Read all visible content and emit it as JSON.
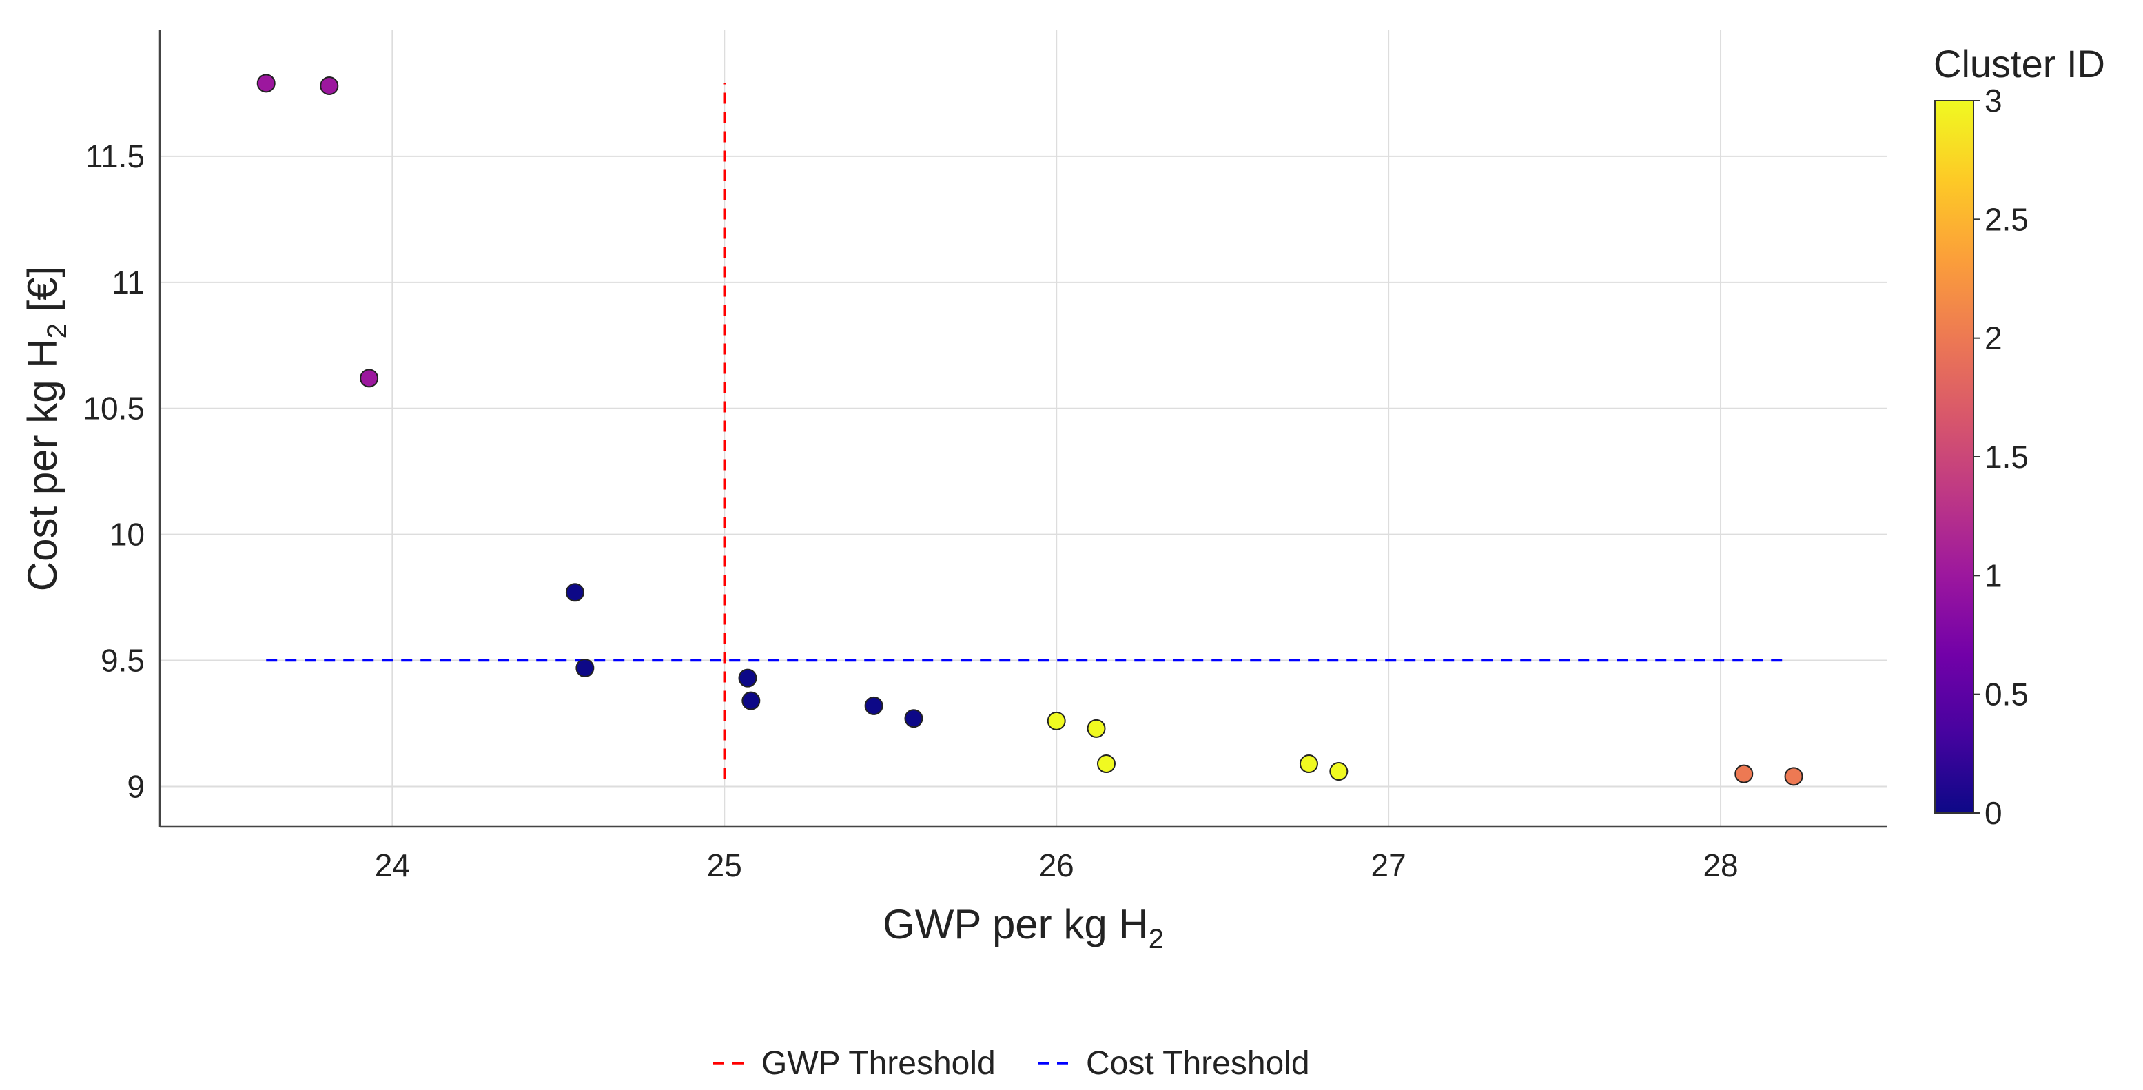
{
  "chart_data": {
    "type": "scatter",
    "title": "",
    "xlabel": "GWP per kg H",
    "xlabel_sub": "2",
    "ylabel": "Cost per kg H",
    "ylabel_sub": "2",
    "ylabel_unit": " [€]",
    "xlim": [
      23.3,
      28.5
    ],
    "ylim": [
      8.84,
      12.0
    ],
    "xticks": [
      24,
      25,
      26,
      27,
      28
    ],
    "yticks": [
      9,
      9.5,
      10,
      10.5,
      11,
      11.5
    ],
    "ytick_labels": [
      "9",
      "9.5",
      "10",
      "10.5",
      "11",
      "11.5"
    ],
    "grid": true,
    "colorbar": {
      "title": "Cluster ID",
      "range": [
        0,
        3
      ],
      "ticks": [
        0,
        0.5,
        1,
        1.5,
        2,
        2.5,
        3
      ],
      "tick_labels": [
        "0",
        "0.5",
        "1",
        "1.5",
        "2",
        "2.5",
        "3"
      ],
      "colorscale": [
        "#0d0887",
        "#46039f",
        "#7201a8",
        "#9c179e",
        "#bd3786",
        "#d8576b",
        "#ed7953",
        "#fb9f3a",
        "#fdca26",
        "#f0f921"
      ]
    },
    "points": [
      {
        "x": 23.62,
        "y": 11.79,
        "cluster": 1
      },
      {
        "x": 23.81,
        "y": 11.78,
        "cluster": 1
      },
      {
        "x": 23.93,
        "y": 10.62,
        "cluster": 1
      },
      {
        "x": 24.55,
        "y": 9.77,
        "cluster": 0
      },
      {
        "x": 24.58,
        "y": 9.47,
        "cluster": 0
      },
      {
        "x": 25.07,
        "y": 9.43,
        "cluster": 0
      },
      {
        "x": 25.08,
        "y": 9.34,
        "cluster": 0
      },
      {
        "x": 25.45,
        "y": 9.32,
        "cluster": 0
      },
      {
        "x": 25.57,
        "y": 9.27,
        "cluster": 0
      },
      {
        "x": 26.0,
        "y": 9.26,
        "cluster": 3
      },
      {
        "x": 26.12,
        "y": 9.23,
        "cluster": 3
      },
      {
        "x": 26.15,
        "y": 9.09,
        "cluster": 3
      },
      {
        "x": 26.76,
        "y": 9.09,
        "cluster": 3
      },
      {
        "x": 26.85,
        "y": 9.06,
        "cluster": 3
      },
      {
        "x": 28.07,
        "y": 9.05,
        "cluster": 2
      },
      {
        "x": 28.22,
        "y": 9.04,
        "cluster": 2
      }
    ],
    "thresholds": [
      {
        "name": "GWP Threshold",
        "orientation": "vertical",
        "value": 25.0,
        "from": 9.03,
        "to": 11.79,
        "color": "#ff0000"
      },
      {
        "name": "Cost Threshold",
        "orientation": "horizontal",
        "value": 9.5,
        "from": 23.62,
        "to": 28.2,
        "color": "#0000ff"
      }
    ],
    "legend": {
      "placement": "bottom-center",
      "entries": [
        "GWP Threshold",
        "Cost Threshold"
      ]
    }
  }
}
